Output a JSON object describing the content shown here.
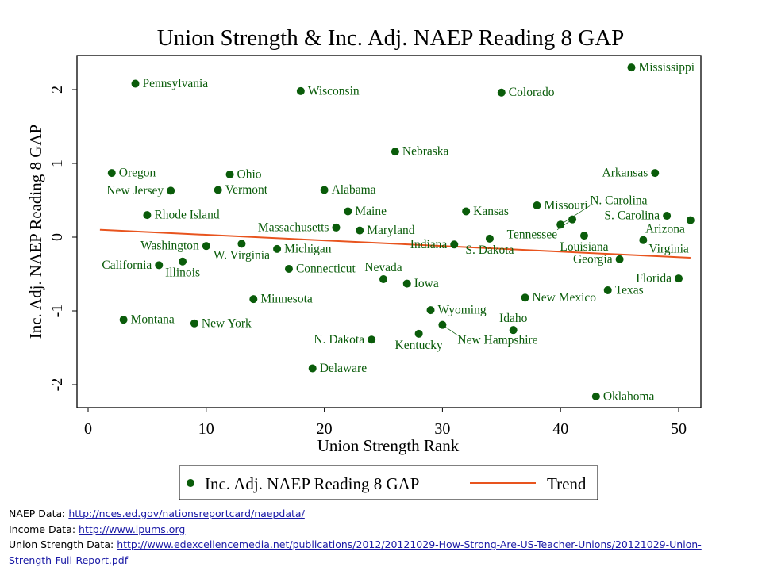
{
  "chart_data": {
    "type": "scatter",
    "title": "Union Strength & Inc. Adj. NAEP Reading 8 GAP",
    "xlabel": "Union Strength Rank",
    "ylabel": "Inc. Adj. NAEP Reading 8 GAP",
    "xlim": [
      -1,
      52
    ],
    "ylim": [
      -2.3,
      2.5
    ],
    "xticks": [
      0,
      10,
      20,
      30,
      40,
      50
    ],
    "yticks": [
      -2,
      -1,
      0,
      1,
      2
    ],
    "grid": false,
    "legend": {
      "placement": "bottom",
      "entries": [
        {
          "label": "Inc. Adj. NAEP Reading 8 GAP",
          "kind": "marker",
          "color": "#0a5c0a"
        },
        {
          "label": "Trend",
          "kind": "line",
          "color": "#e8541e"
        }
      ]
    },
    "series": [
      {
        "name": "Inc. Adj. NAEP Reading 8 GAP",
        "color": "#0a5c0a",
        "points": [
          {
            "label": "Pennsylvania",
            "x": 4,
            "y": 2.08
          },
          {
            "label": "Wisconsin",
            "x": 18,
            "y": 1.98
          },
          {
            "label": "Colorado",
            "x": 35,
            "y": 1.96
          },
          {
            "label": "Mississippi",
            "x": 46,
            "y": 2.3
          },
          {
            "label": "Nebraska",
            "x": 26,
            "y": 1.16
          },
          {
            "label": "Oregon",
            "x": 2,
            "y": 0.87
          },
          {
            "label": "Ohio",
            "x": 12,
            "y": 0.85
          },
          {
            "label": "Arkansas",
            "x": 48,
            "y": 0.87
          },
          {
            "label": "New Jersey",
            "x": 7,
            "y": 0.63
          },
          {
            "label": "Vermont",
            "x": 11,
            "y": 0.64
          },
          {
            "label": "Alabama",
            "x": 20,
            "y": 0.64
          },
          {
            "label": "Missouri",
            "x": 38,
            "y": 0.43
          },
          {
            "label": "Rhode Island",
            "x": 5,
            "y": 0.3
          },
          {
            "label": "Maine",
            "x": 22,
            "y": 0.35
          },
          {
            "label": "Kansas",
            "x": 32,
            "y": 0.35
          },
          {
            "label": "S. Carolina",
            "x": 49,
            "y": 0.29
          },
          {
            "label": "Arizona",
            "x": 51,
            "y": 0.23
          },
          {
            "label": "Tennessee",
            "x": 41,
            "y": 0.24
          },
          {
            "label": "N. Carolina",
            "x": 40,
            "y": 0.17
          },
          {
            "label": "Massachusetts",
            "x": 21,
            "y": 0.13
          },
          {
            "label": "Maryland",
            "x": 23,
            "y": 0.09
          },
          {
            "label": "Louisiana",
            "x": 42,
            "y": 0.02
          },
          {
            "label": "Virginia",
            "x": 47,
            "y": -0.04
          },
          {
            "label": "S. Dakota",
            "x": 34,
            "y": -0.02
          },
          {
            "label": "Indiana",
            "x": 31,
            "y": -0.1
          },
          {
            "label": "W. Virginia",
            "x": 13,
            "y": -0.09
          },
          {
            "label": "Washington",
            "x": 10,
            "y": -0.12
          },
          {
            "label": "Michigan",
            "x": 16,
            "y": -0.16
          },
          {
            "label": "Georgia",
            "x": 45,
            "y": -0.3
          },
          {
            "label": "Illinois",
            "x": 8,
            "y": -0.33
          },
          {
            "label": "California",
            "x": 6,
            "y": -0.38
          },
          {
            "label": "Connecticut",
            "x": 17,
            "y": -0.43
          },
          {
            "label": "Florida",
            "x": 50,
            "y": -0.56
          },
          {
            "label": "Nevada",
            "x": 25,
            "y": -0.57
          },
          {
            "label": "Iowa",
            "x": 27,
            "y": -0.63
          },
          {
            "label": "Texas",
            "x": 44,
            "y": -0.72
          },
          {
            "label": "Minnesota",
            "x": 14,
            "y": -0.84
          },
          {
            "label": "New Mexico",
            "x": 37,
            "y": -0.82
          },
          {
            "label": "Wyoming",
            "x": 29,
            "y": -0.99
          },
          {
            "label": "Montana",
            "x": 3,
            "y": -1.12
          },
          {
            "label": "New York",
            "x": 9,
            "y": -1.17
          },
          {
            "label": "New Hampshire",
            "x": 30,
            "y": -1.19
          },
          {
            "label": "Idaho",
            "x": 36,
            "y": -1.26
          },
          {
            "label": "Kentucky",
            "x": 28,
            "y": -1.31
          },
          {
            "label": "N. Dakota",
            "x": 24,
            "y": -1.39
          },
          {
            "label": "Delaware",
            "x": 19,
            "y": -1.78
          },
          {
            "label": "Oklahoma",
            "x": 43,
            "y": -2.16
          }
        ]
      },
      {
        "name": "Trend",
        "type": "line",
        "color": "#e8541e",
        "points": [
          {
            "x": 1,
            "y": 0.1
          },
          {
            "x": 51,
            "y": -0.28
          }
        ]
      }
    ]
  },
  "footer": {
    "naep": {
      "label": "NAEP Data:",
      "url": "http://nces.ed.gov/nationsreportcard/naepdata/"
    },
    "income": {
      "label": "Income Data:",
      "url": "http://www.ipums.org"
    },
    "union": {
      "label": "Union Strength Data:",
      "url_part1": "http://www.edexcellencemedia.net/publications/2012/20121029-How-Strong-Are-US-Teacher-Unions/20121029-Union-",
      "url_part2": "Strength-Full-Report.pdf"
    }
  }
}
